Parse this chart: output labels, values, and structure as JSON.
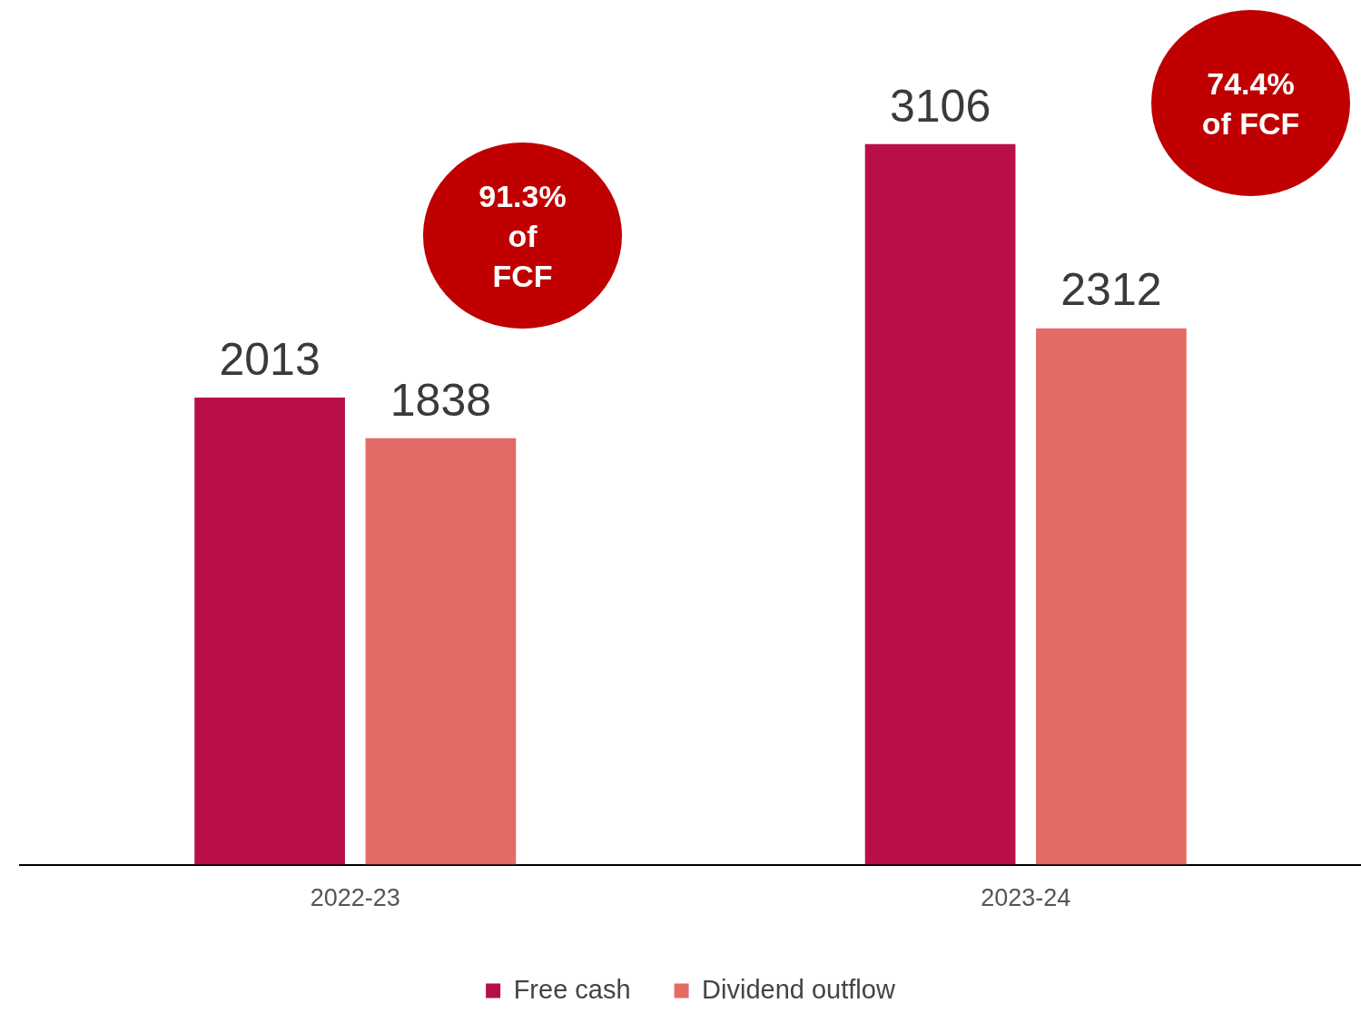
{
  "chart_data": {
    "type": "bar",
    "categories": [
      "2022-23",
      "2023-24"
    ],
    "series": [
      {
        "name": "Free cash",
        "color": "#b80f48",
        "values": [
          2013,
          3106
        ]
      },
      {
        "name": "Dividend outflow",
        "color": "#e36b66",
        "values": [
          1838,
          2312
        ]
      }
    ],
    "data_labels": true,
    "legend": "bottom",
    "grid": false,
    "tick_labels": "x",
    "annotations": [
      "91.3%\nof\nFCF",
      "74.4%\nof FCF"
    ]
  }
}
